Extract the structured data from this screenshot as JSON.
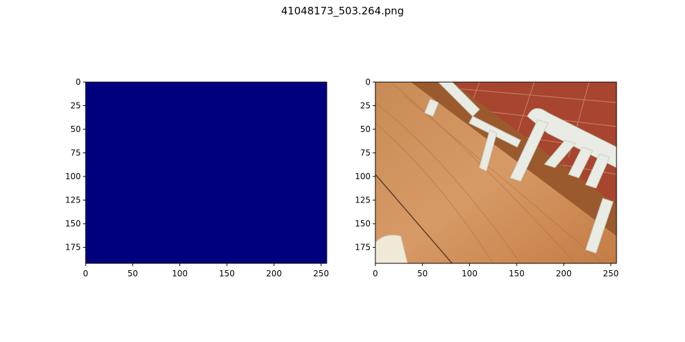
{
  "figure": {
    "title": "41048173_503.264.png"
  },
  "panels": [
    {
      "kind": "mask",
      "fill_color": "#00007f",
      "x_ticks": [
        "0",
        "50",
        "100",
        "150",
        "200",
        "250"
      ],
      "y_ticks": [
        "0",
        "25",
        "50",
        "75",
        "100",
        "125",
        "150",
        "175"
      ]
    },
    {
      "kind": "photo",
      "subject": "wooden-table-with-white-chairs-on-red-tile-floor",
      "x_ticks": [
        "0",
        "50",
        "100",
        "150",
        "200",
        "250"
      ],
      "y_ticks": [
        "0",
        "25",
        "50",
        "75",
        "100",
        "125",
        "150",
        "175"
      ]
    }
  ]
}
